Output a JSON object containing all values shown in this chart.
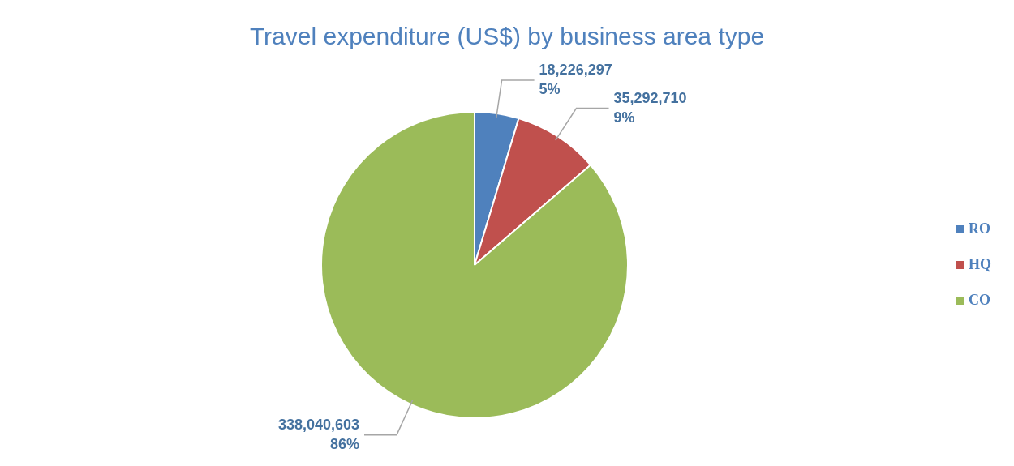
{
  "chart_data": {
    "type": "pie",
    "title": "Travel expenditure (US$) by business area type",
    "categories": [
      "RO",
      "HQ",
      "CO"
    ],
    "values": [
      18226297,
      35292710,
      338040603
    ],
    "colors": [
      "#4f81bd",
      "#c0504d",
      "#9bbb59"
    ],
    "value_labels": [
      "18,226,297\n5%",
      "35,292,710\n9%",
      "338,040,603\n86%"
    ],
    "legend": "right"
  }
}
